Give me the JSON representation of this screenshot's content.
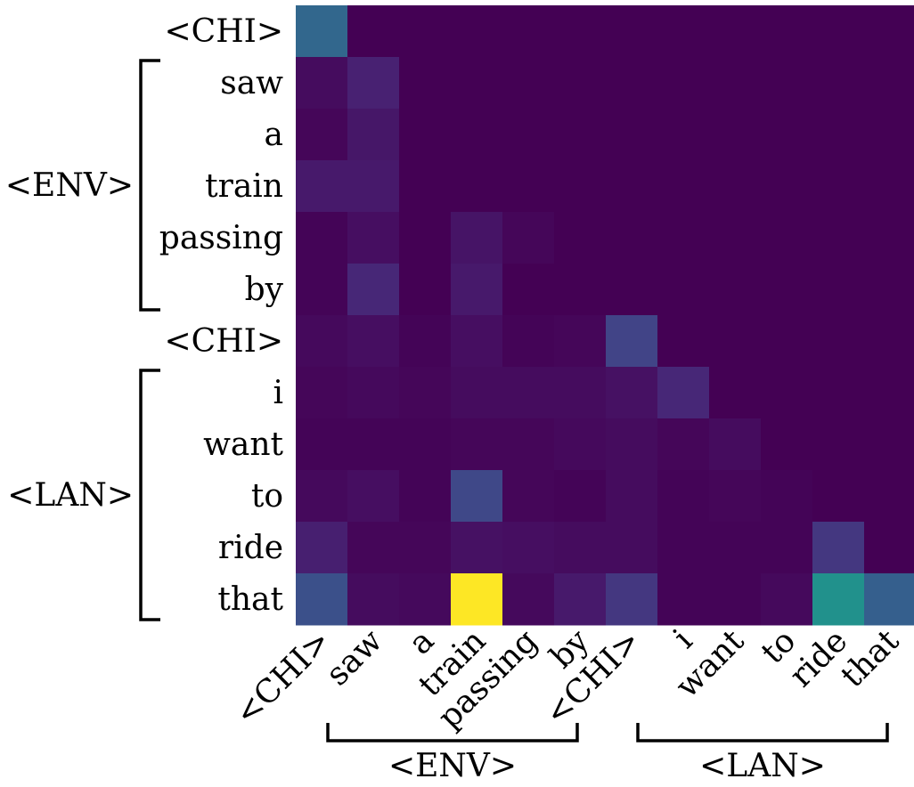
{
  "chart_data": {
    "type": "heatmap",
    "title": "",
    "xlabel": "",
    "ylabel": "",
    "x_tokens": [
      "<CHI>",
      "saw",
      "a",
      "train",
      "passing",
      "by",
      "<CHI>",
      "i",
      "want",
      "to",
      "ride",
      "that"
    ],
    "y_tokens": [
      "<CHI>",
      "saw",
      "a",
      "train",
      "passing",
      "by",
      "<CHI>",
      "i",
      "want",
      "to",
      "ride",
      "that"
    ],
    "value_range": [
      0,
      1
    ],
    "colormap": "viridis",
    "values": [
      [
        0.4,
        0,
        0,
        0,
        0,
        0,
        0,
        0,
        0,
        0,
        0,
        0
      ],
      [
        0.04,
        0.12,
        0,
        0,
        0,
        0,
        0,
        0,
        0,
        0,
        0,
        0
      ],
      [
        0.02,
        0.08,
        0,
        0,
        0,
        0,
        0,
        0,
        0,
        0,
        0,
        0
      ],
      [
        0.09,
        0.09,
        0,
        0,
        0,
        0,
        0,
        0,
        0,
        0,
        0,
        0
      ],
      [
        0.01,
        0.05,
        0,
        0.07,
        0.02,
        0,
        0,
        0,
        0,
        0,
        0,
        0
      ],
      [
        0.01,
        0.14,
        0,
        0.09,
        0,
        0,
        0,
        0,
        0,
        0,
        0,
        0
      ],
      [
        0.03,
        0.05,
        0.01,
        0.05,
        0.01,
        0.02,
        0.25,
        0,
        0,
        0,
        0,
        0
      ],
      [
        0.02,
        0.03,
        0.02,
        0.04,
        0.04,
        0.04,
        0.06,
        0.14,
        0,
        0,
        0,
        0
      ],
      [
        0.01,
        0.01,
        0.01,
        0.02,
        0.02,
        0.03,
        0.04,
        0.02,
        0.04,
        0,
        0,
        0
      ],
      [
        0.03,
        0.05,
        0.01,
        0.27,
        0.02,
        0.01,
        0.04,
        0.01,
        0.02,
        0.01,
        0,
        0
      ],
      [
        0.11,
        0.02,
        0.02,
        0.06,
        0.05,
        0.04,
        0.04,
        0.01,
        0.01,
        0.01,
        0.2,
        0
      ],
      [
        0.31,
        0.04,
        0.03,
        1.0,
        0.03,
        0.09,
        0.2,
        0.01,
        0.01,
        0.03,
        0.5,
        0.38
      ]
    ],
    "y_groups": [
      {
        "label": "<ENV>",
        "from": 1,
        "to": 5
      },
      {
        "label": "<LAN>",
        "from": 7,
        "to": 11
      }
    ],
    "x_groups": [
      {
        "label": "<ENV>",
        "from": 1,
        "to": 5
      },
      {
        "label": "<LAN>",
        "from": 7,
        "to": 11
      }
    ]
  }
}
